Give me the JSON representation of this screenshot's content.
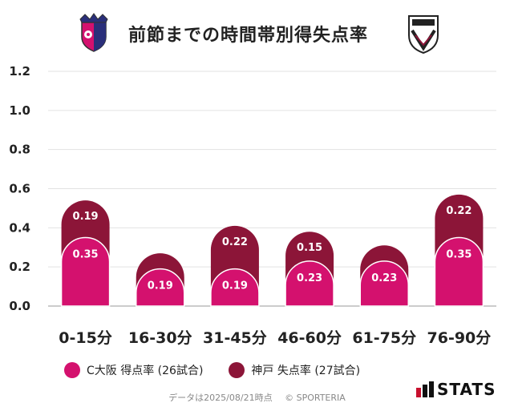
{
  "header": {
    "title": "前節までの時間帯別得失点率"
  },
  "chart_data": {
    "type": "bar",
    "stacked": true,
    "title": "前節までの時間帯別得失点率",
    "categories": [
      "0-15分",
      "16-30分",
      "31-45分",
      "46-60分",
      "61-75分",
      "76-90分"
    ],
    "series": [
      {
        "name": "C大阪 得点率 (26試合)",
        "color": "#d4116e",
        "values": [
          0.35,
          0.19,
          0.19,
          0.23,
          0.23,
          0.35
        ],
        "labels": [
          "0.35",
          "0.19",
          "0.19",
          "0.23",
          "0.23",
          "0.35"
        ]
      },
      {
        "name": "神戸 失点率 (27試合)",
        "color": "#8c1538",
        "values": [
          0.19,
          0.08,
          0.22,
          0.15,
          0.08,
          0.22
        ],
        "labels": [
          "0.19",
          "",
          "0.22",
          "0.15",
          "",
          "0.22"
        ]
      }
    ],
    "yticks": [
      "0.0",
      "0.2",
      "0.4",
      "0.6",
      "0.8",
      "1.0",
      "1.2"
    ],
    "ylim": [
      0,
      1.2
    ],
    "grid": true
  },
  "legend": {
    "items": [
      {
        "label": "C大阪 得点率 (26試合)",
        "color": "#d4116e"
      },
      {
        "label": "神戸 失点率 (27試合)",
        "color": "#8c1538"
      }
    ]
  },
  "footer": {
    "date_text": "データは2025/08/21時点",
    "copyright": "© SPORTERIA"
  },
  "brand": {
    "stats": "STATS"
  }
}
